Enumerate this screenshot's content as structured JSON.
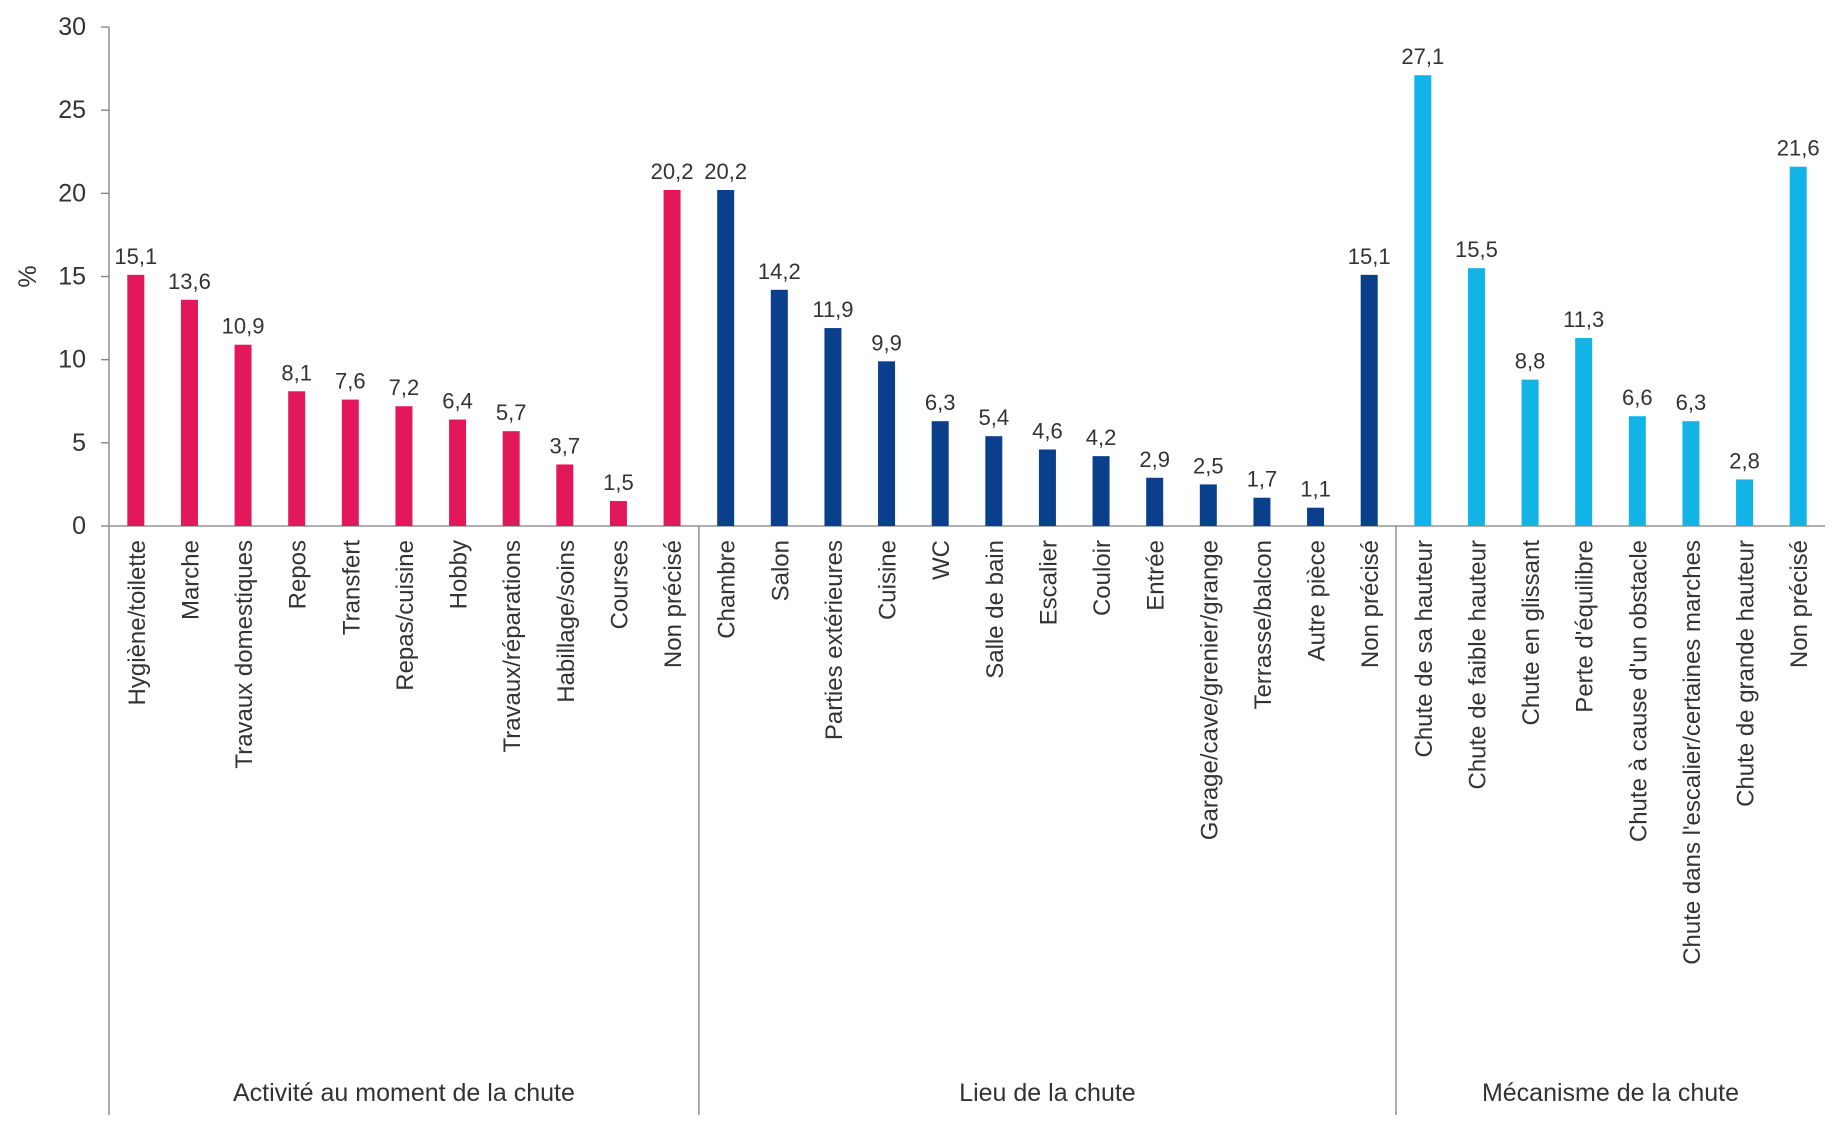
{
  "chart_data": {
    "type": "bar",
    "ylabel": "%",
    "ylim": [
      0,
      30
    ],
    "yticks": [
      0,
      5,
      10,
      15,
      20,
      25,
      30
    ],
    "grid": false,
    "legend": "none",
    "groups": [
      {
        "name": "Activité au moment de la chute",
        "color": "#E2185B",
        "categories": [
          "Hygiène/toilette",
          "Marche",
          "Travaux domestiques",
          "Repos",
          "Transfert",
          "Repas/cuisine",
          "Hobby",
          "Travaux/réparations",
          "Habillage/soins",
          "Courses",
          "Non précisé"
        ],
        "values": [
          15.1,
          13.6,
          10.9,
          8.1,
          7.6,
          7.2,
          6.4,
          5.7,
          3.7,
          1.5,
          20.2
        ],
        "labels": [
          "15,1",
          "13,6",
          "10,9",
          "8,1",
          "7,6",
          "7,2",
          "6,4",
          "5,7",
          "3,7",
          "1,5",
          "20,2"
        ]
      },
      {
        "name": "Lieu de la chute",
        "color": "#0A3F8C",
        "categories": [
          "Chambre",
          "Salon",
          "Parties extérieures",
          "Cuisine",
          "WC",
          "Salle de bain",
          "Escalier",
          "Couloir",
          "Entrée",
          "Garage/cave/grenier/grange",
          "Terrasse/balcon",
          "Autre pièce",
          "Non précisé"
        ],
        "values": [
          20.2,
          14.2,
          11.9,
          9.9,
          6.3,
          5.4,
          4.6,
          4.2,
          2.9,
          2.5,
          1.7,
          1.1,
          15.1
        ],
        "labels": [
          "20,2",
          "14,2",
          "11,9",
          "9,9",
          "6,3",
          "5,4",
          "4,6",
          "4,2",
          "2,9",
          "2,5",
          "1,7",
          "1,1",
          "15,1"
        ]
      },
      {
        "name": "Mécanisme de la chute",
        "color": "#12B3E6",
        "categories": [
          "Chute de sa hauteur",
          "Chute de faible hauteur",
          "Chute en glissant",
          "Perte d'équilibre",
          "Chute à cause d'un obstacle",
          "Chute dans l'escalier/certaines marches",
          "Chute de grande hauteur",
          "Non précisé"
        ],
        "values": [
          27.1,
          15.5,
          8.8,
          11.3,
          6.6,
          6.3,
          2.8,
          21.6
        ],
        "labels": [
          "27,1",
          "15,5",
          "8,8",
          "11,3",
          "6,6",
          "6,3",
          "2,8",
          "21,6"
        ]
      }
    ]
  }
}
